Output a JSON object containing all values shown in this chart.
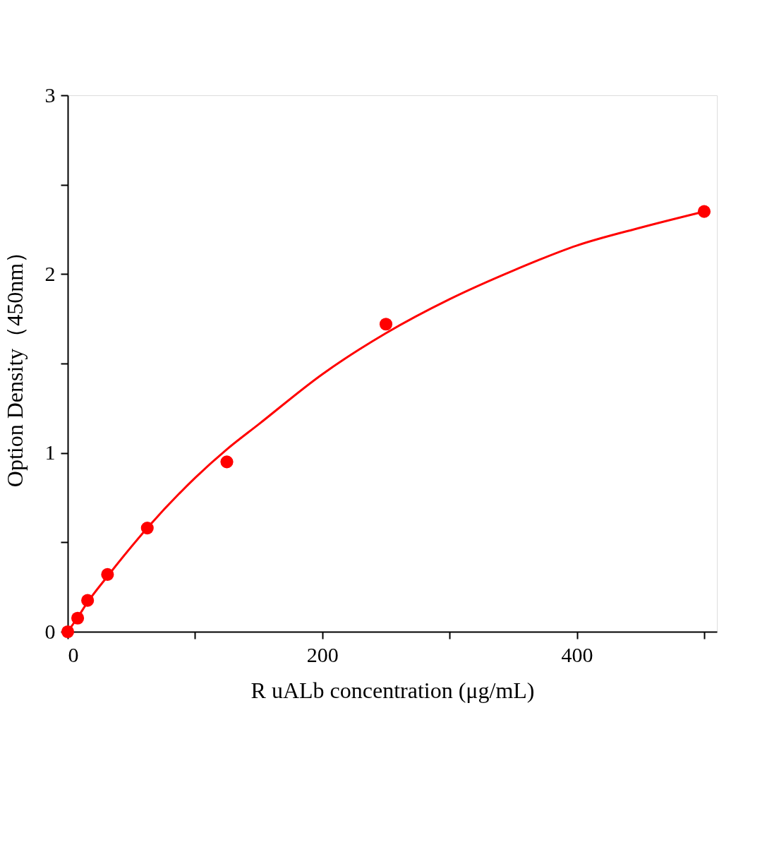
{
  "chart_data": {
    "type": "scatter",
    "xlabel": "R uALb concentration (μg/mL)",
    "ylabel": "Option Density（450nm）",
    "xlim": [
      0,
      510
    ],
    "xticks": [
      0,
      {
        "value": 100,
        "label": null
      },
      200,
      {
        "value": 300,
        "label": null
      },
      400,
      {
        "value": 500,
        "label": null
      }
    ],
    "ylim": [
      0,
      3
    ],
    "yticks": [
      0,
      {
        "value": 0.5,
        "label": null
      },
      1,
      {
        "value": 1.5,
        "label": null
      },
      2,
      {
        "value": 2.5,
        "label": null
      },
      3
    ],
    "grid": false,
    "series": [
      {
        "marker": "circle",
        "color": "#ff0000",
        "x": [
          0,
          7.8,
          15.6,
          31.25,
          62.5,
          125,
          250,
          500
        ],
        "values": [
          0,
          0.076,
          0.175,
          0.32,
          0.58,
          0.95,
          1.72,
          2.35
        ]
      },
      {
        "type": "line",
        "marker": "none",
        "color": "#ff0000",
        "line_style": "solid",
        "x": [
          0,
          7.8,
          15.6,
          31.25,
          62.5,
          100,
          125,
          150,
          200,
          250,
          300,
          350,
          400,
          450,
          500
        ],
        "values": [
          0,
          0.08,
          0.165,
          0.31,
          0.58,
          0.86,
          1.02,
          1.16,
          1.44,
          1.67,
          1.86,
          2.02,
          2.16,
          2.26,
          2.35
        ]
      }
    ]
  }
}
